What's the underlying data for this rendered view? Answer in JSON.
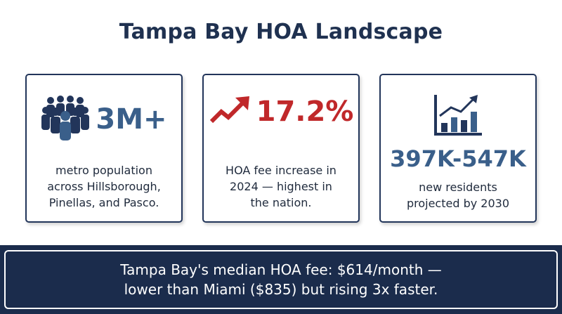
{
  "page": {
    "title": "Tampa Bay HOA Landscape"
  },
  "cards": [
    {
      "icon": "people-group-icon",
      "value": "3M+",
      "desc_lines": [
        "metro population",
        "across Hillsborough,",
        "Pinellas, and Pasco."
      ]
    },
    {
      "icon": "trend-up-arrow-icon",
      "value": "17.2%",
      "desc_lines": [
        "HOA fee increase in",
        "2024 — highest in",
        "the nation."
      ]
    },
    {
      "icon": "bar-chart-growth-icon",
      "value": "397K-547K",
      "desc_lines": [
        "new residents",
        "projected by 2030"
      ]
    }
  ],
  "banner": {
    "line1": "Tampa Bay's median HOA fee: $614/month —",
    "line2": "lower than Miami ($835) but rising 3x faster."
  },
  "colors": {
    "navy": "#1b2c4c",
    "accent_blue": "#3a5f8a",
    "accent_red": "#c0282a"
  }
}
